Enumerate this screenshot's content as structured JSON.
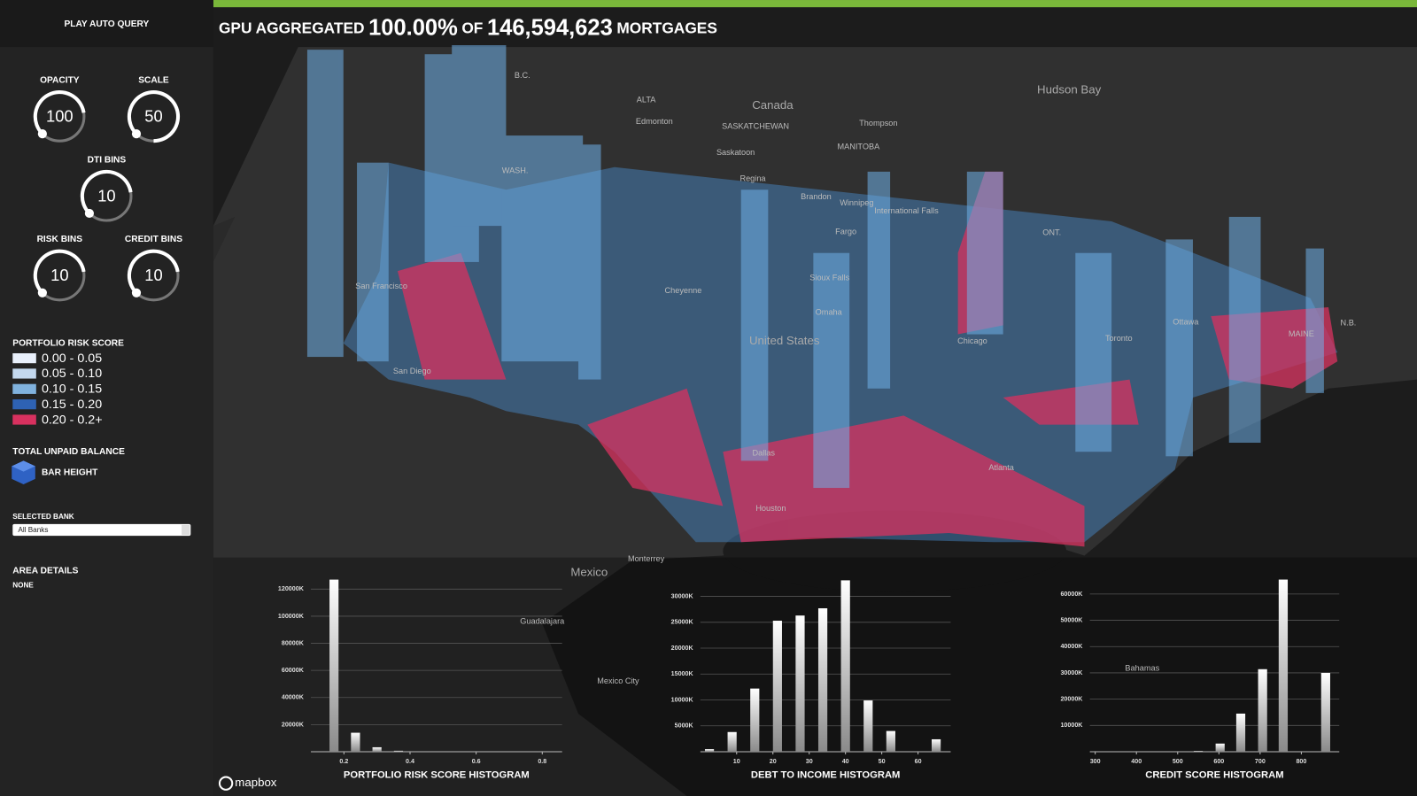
{
  "header": {
    "prefix": "GPU AGGREGATED",
    "percent": "100.00%",
    "of": "OF",
    "count": "146,594,623",
    "suffix": "MORTGAGES"
  },
  "sidebar": {
    "play": "PLAY AUTO QUERY",
    "knobs": [
      {
        "label": "OPACITY",
        "value": 100
      },
      {
        "label": "SCALE",
        "value": 50
      },
      {
        "label": "DTI BINS",
        "value": 10
      },
      {
        "label": "RISK BINS",
        "value": 10
      },
      {
        "label": "CREDIT BINS",
        "value": 10
      }
    ],
    "legend_title": "PORTFOLIO RISK SCORE",
    "legend": [
      {
        "label": "0.00 - 0.05",
        "color": "#e9f0fb"
      },
      {
        "label": "0.05 - 0.10",
        "color": "#c3d8ee"
      },
      {
        "label": "0.10 - 0.15",
        "color": "#80b2de"
      },
      {
        "label": "0.15 - 0.20",
        "color": "#2e62b3"
      },
      {
        "label": "0.20 - 0.2+",
        "color": "#d8315f"
      }
    ],
    "balance_title": "TOTAL UNPAID BALANCE",
    "balance_label": "BAR HEIGHT",
    "bank_title": "SELECTED BANK",
    "bank_value": "All Banks",
    "area_title": "AREA DETAILS",
    "area_value": "NONE"
  },
  "map_labels": [
    "Hudson Bay",
    "Canada",
    "B.C.",
    "ALTA",
    "Edmonton",
    "SASKATCHEWAN",
    "Thompson",
    "MANITOBA",
    "Saskatoon",
    "Regina",
    "Brandon",
    "Winnipeg",
    "International Falls",
    "ONT.",
    "WASH.",
    "Fargo",
    "Sioux Falls",
    "Cheyenne",
    "Omaha",
    "United States",
    "Chicago",
    "Toronto",
    "Ottawa",
    "N.B.",
    "MAINE",
    "San Francisco",
    "San Diego",
    "Dallas",
    "Houston",
    "Atlanta",
    "Monterrey",
    "Mexico",
    "Guadalajara",
    "Mexico City",
    "Bahamas"
  ],
  "attribution": "mapbox",
  "chart_data": [
    {
      "type": "bar",
      "title": "PORTFOLIO RISK SCORE HISTOGRAM",
      "color": "#ffffff",
      "x": [
        0.17,
        0.235,
        0.3,
        0.365
      ],
      "values": [
        127000,
        14000,
        3300,
        700
      ],
      "xlim": [
        0.1,
        0.86
      ],
      "xticks": [
        0.2,
        0.4,
        0.6,
        0.8
      ],
      "ylim": [
        0,
        128000
      ],
      "yticks": [
        {
          "value": 20000,
          "label": "20000K"
        },
        {
          "value": 40000,
          "label": "40000K"
        },
        {
          "value": 60000,
          "label": "60000K"
        },
        {
          "value": 80000,
          "label": "80000K"
        },
        {
          "value": 100000,
          "label": "100000K"
        },
        {
          "value": 120000,
          "label": "120000K"
        }
      ]
    },
    {
      "type": "bar",
      "title": "DEBT TO INCOME HISTOGRAM",
      "color": "#ffffff",
      "x": [
        2.5,
        8.75,
        15,
        21.25,
        27.5,
        33.75,
        40,
        46.25,
        52.5,
        65
      ],
      "values": [
        500,
        3800,
        12200,
        25300,
        26300,
        27700,
        33100,
        9900,
        4000,
        2400
      ],
      "xlim": [
        0,
        69
      ],
      "xticks": [
        10,
        20,
        30,
        40,
        50,
        60
      ],
      "ylim": [
        0,
        33500
      ],
      "yticks": [
        {
          "value": 5000,
          "label": "5000K"
        },
        {
          "value": 10000,
          "label": "10000K"
        },
        {
          "value": 15000,
          "label": "15000K"
        },
        {
          "value": 20000,
          "label": "20000K"
        },
        {
          "value": 25000,
          "label": "25000K"
        },
        {
          "value": 30000,
          "label": "30000K"
        }
      ]
    },
    {
      "type": "bar",
      "title": "CREDIT SCORE HISTOGRAM",
      "color": "#ffffff",
      "x": [
        550,
        603,
        653,
        706,
        756,
        859
      ],
      "values": [
        300,
        3100,
        14500,
        31400,
        65500,
        30000
      ],
      "xlim": [
        287,
        892
      ],
      "xticks": [
        300,
        400,
        500,
        600,
        700,
        800
      ],
      "ylim": [
        0,
        66000
      ],
      "yticks": [
        {
          "value": 10000,
          "label": "10000K"
        },
        {
          "value": 20000,
          "label": "20000K"
        },
        {
          "value": 30000,
          "label": "30000K"
        },
        {
          "value": 40000,
          "label": "40000K"
        },
        {
          "value": 50000,
          "label": "50000K"
        },
        {
          "value": 60000,
          "label": "60000K"
        }
      ]
    }
  ]
}
